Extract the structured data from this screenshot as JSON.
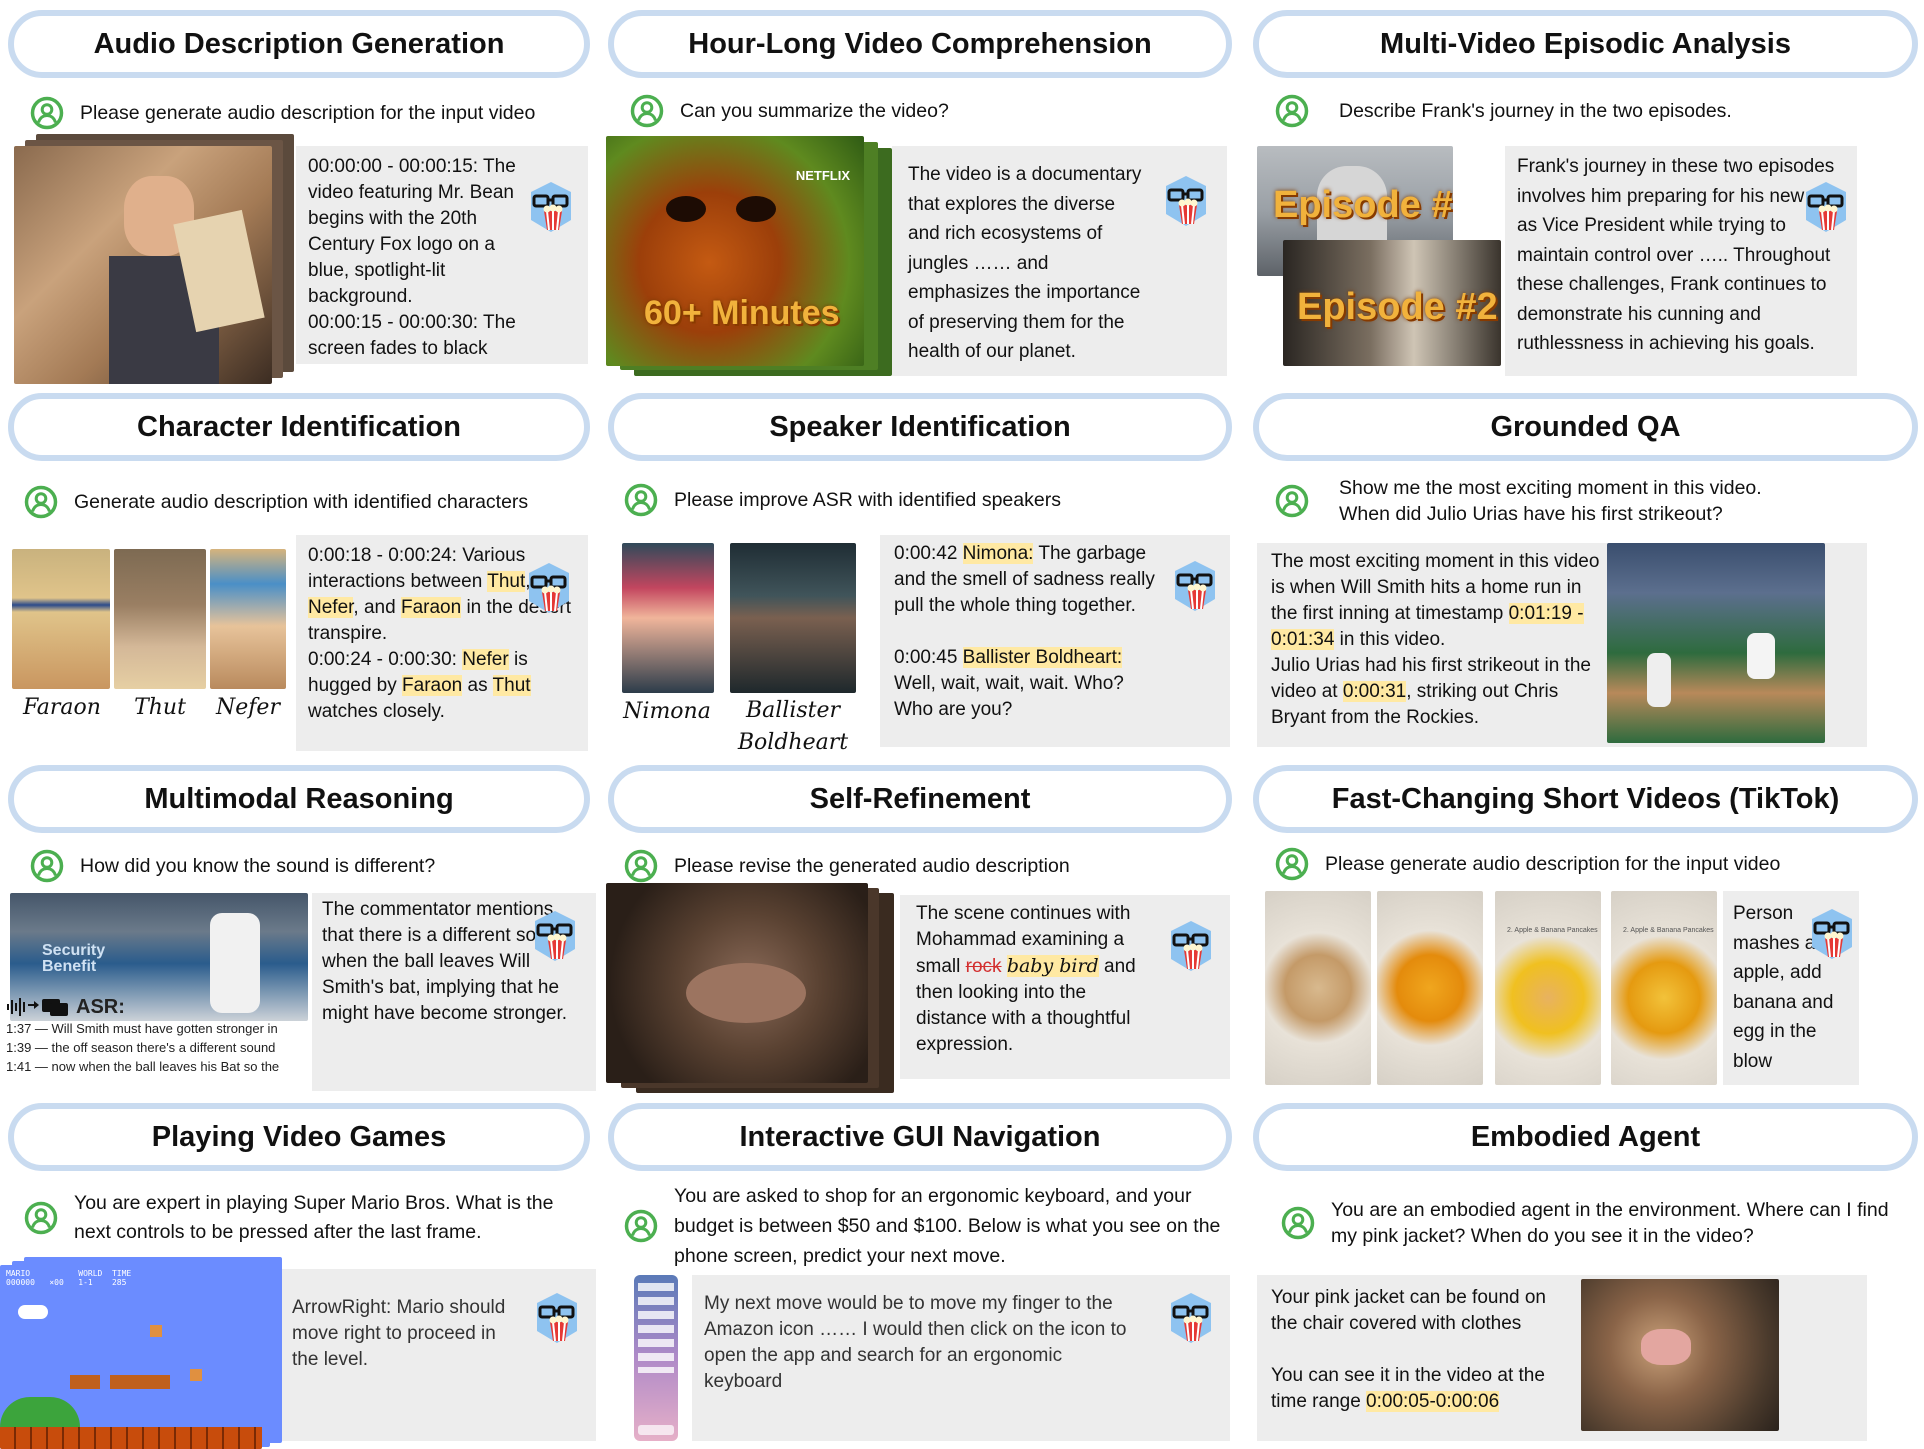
{
  "panels": [
    {
      "title": "Audio Description Generation",
      "question": "Please generate audio description for the input video",
      "answer": "00:00:00 - 00:00:15: The video featuring Mr. Bean begins with the 20th Century Fox logo on a blue, spotlight-lit background.\n00:00:15 - 00:00:30: The screen fades to black …."
    },
    {
      "title": "Hour-Long Video Comprehension",
      "question": "Can you summarize the video?",
      "answer": "The video is a documentary that explores the diverse and rich ecosystems of jungles …… and emphasizes the importance of preserving them for the health of our planet.",
      "overlay": "60+ Minutes",
      "brand": "NETFLIX"
    },
    {
      "title": "Multi-Video Episodic Analysis",
      "question": "Describe Frank's journey in the two episodes.",
      "answer": "Frank's journey in these two episodes involves him preparing for his new role as Vice President while trying to maintain control over ….. Throughout these challenges, Frank continues to demonstrate his cunning and ruthlessness in achieving his goals.",
      "ep1": "Episode #1",
      "ep2": "Episode #2"
    },
    {
      "title": "Character Identification",
      "question": "Generate audio description with identified characters",
      "a_p1": "0:00:18 - 0:00:24: Various interactions between ",
      "a_n1": "Thut",
      "a_p2": ", ",
      "a_n2": "Nefer",
      "a_p3": ", and ",
      "a_n3": "Faraon",
      "a_p4": " in the desert transpire.\n0:00:24 - 0:00:30: ",
      "a_n4": "Nefer",
      "a_p5": " is hugged by ",
      "a_n5": "Faraon",
      "a_p6": " as ",
      "a_n6": "Thut",
      "a_p7": " watches closely.",
      "captions": [
        "Faraon",
        "Thut",
        "Nefer"
      ]
    },
    {
      "title": "Speaker Identification",
      "question": "Please improve ASR with identified speakers",
      "a_t1": "0:00:42 ",
      "a_s1": "Nimona:",
      "a_l1": " The garbage and the smell of sadness really pull the whole thing together.",
      "a_t2": "0:00:45 ",
      "a_s2": "Ballister Boldheart:",
      "a_l2": " Well, wait, wait, wait. Who? Who are you?",
      "captions": [
        "Nimona",
        "Ballister\nBoldheart"
      ]
    },
    {
      "title": "Grounded QA",
      "question": "Show me the most exciting moment in this video.\nWhen did Julio Urias have his first strikeout?",
      "a_p1": "The most exciting moment in this video is when Will Smith hits a home run in the first inning at timestamp ",
      "a_h1": "0:01:19 - 0:01:34",
      "a_p2": " in this video.\nJulio Urias had his first strikeout in the video at ",
      "a_h2": "0:00:31",
      "a_p3": ", striking out Chris Bryant from the Rockies."
    },
    {
      "title": "Multimodal Reasoning",
      "question": "How did you know the sound is different?",
      "answer": "The commentator mentions that there is a different sound when the ball leaves Will Smith's bat, implying that he might have become stronger.",
      "asr_label": "ASR:",
      "asr_lines": [
        "1:37 — Will Smith must have gotten stronger in",
        "1:39 — the off season there's a different sound",
        "1:41 — now when the ball leaves his Bat so the"
      ],
      "sign": "Security Benefit"
    },
    {
      "title": "Self-Refinement",
      "question": "Please revise the generated audio description",
      "a_p1": "The scene continues with Mohammad examining a small ",
      "a_struck": "rock",
      "a_ins": "baby bird",
      "a_p2": " and then looking into the distance with a thoughtful expression."
    },
    {
      "title": "Fast-Changing Short Videos (TikTok)",
      "question": "Please generate audio description for the input video",
      "answer": "Person mashes an apple, add banana and egg in the blow",
      "frame_label": "2. Apple & Banana Pancakes"
    },
    {
      "title": "Playing Video Games",
      "question": "You are expert in playing Super Mario Bros. What is the next controls to be pressed after the last frame.",
      "answer": "ArrowRight: Mario should move right to proceed in the level.",
      "hud": "MARIO          WORLD  TIME\n000000   ×00   1-1    285"
    },
    {
      "title": "Interactive GUI Navigation",
      "question": "You are asked to shop for an ergonomic keyboard, and your budget is between $50 and $100. Below is what you see on the phone  screen, predict your next move.",
      "answer": "My next move would be to move my finger to the Amazon icon …… I would then click on the icon to open the app and search for an ergonomic keyboard"
    },
    {
      "title": "Embodied Agent",
      "question": "You are an embodied agent in the environment. Where can I find my pink jacket? When do you see it in the video?",
      "a_p1": "Your pink jacket can be found on the chair covered with clothes\n\nYou can see it in the video at the time range ",
      "a_h1": "0:00:05-0:00:06"
    }
  ],
  "colors": {
    "pill_border": "#c9dbf0",
    "answer_bg": "#ededed",
    "highlight": "#ffe9a3",
    "user_icon": "#4caf50",
    "bot_icon": "#8ec3f0"
  }
}
